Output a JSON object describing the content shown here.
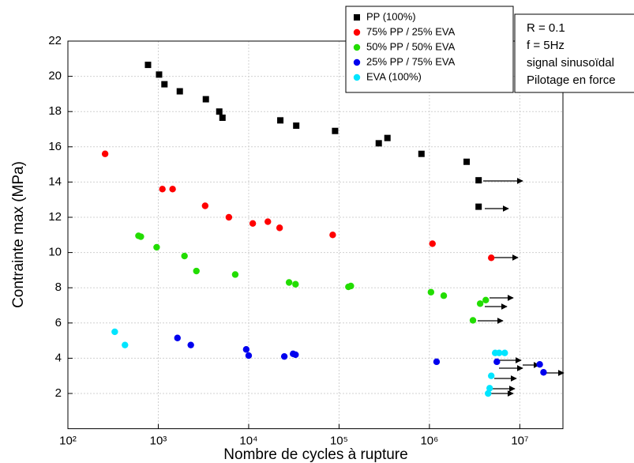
{
  "chart_data": {
    "type": "scatter",
    "xlabel": "Nombre de cycles à rupture",
    "ylabel": "Contrainte max (MPa)",
    "xscale": "log",
    "xlim": [
      100,
      30000000
    ],
    "ylim": [
      0,
      22
    ],
    "xticks": [
      {
        "value": 100,
        "label": "10²"
      },
      {
        "value": 1000,
        "label": "10³"
      },
      {
        "value": 10000,
        "label": "10⁴"
      },
      {
        "value": 100000,
        "label": "10⁵"
      },
      {
        "value": 1000000,
        "label": "10⁶"
      },
      {
        "value": 10000000,
        "label": "10⁷"
      }
    ],
    "yticks": [
      2,
      4,
      6,
      8,
      10,
      12,
      14,
      16,
      18,
      20,
      22
    ],
    "grid": true,
    "legend": "top-right",
    "annotations": [
      "R = 0.1",
      "f = 5Hz",
      "signal sinusoïdal",
      "Pilotage en force"
    ],
    "series": [
      {
        "name": "PP (100%)",
        "color": "#000000",
        "marker": "square",
        "x": [
          770,
          1020,
          1170,
          1730,
          3360,
          4730,
          5130,
          22400,
          33600,
          90400,
          275000,
          343000,
          816000,
          2580000,
          3500000,
          3500000
        ],
        "values": [
          20.65,
          20.1,
          19.55,
          19.15,
          18.7,
          18.0,
          17.65,
          17.5,
          17.2,
          16.9,
          16.2,
          16.5,
          15.6,
          15.15,
          14.1,
          12.6
        ]
      },
      {
        "name": "75% PP / 25% EVA",
        "color": "#ff0000",
        "marker": "circle",
        "x": [
          258,
          1110,
          1440,
          3300,
          6040,
          11100,
          16300,
          22000,
          85100,
          1080000,
          4830000
        ],
        "values": [
          15.6,
          13.6,
          13.6,
          12.65,
          12.0,
          11.65,
          11.75,
          11.4,
          11.0,
          10.5,
          9.7
        ]
      },
      {
        "name": "50% PP / 50% EVA",
        "color": "#22dd00",
        "marker": "circle",
        "x": [
          604,
          641,
          959,
          1950,
          2640,
          7100,
          28000,
          33000,
          127000,
          135000,
          1040000,
          1440000,
          3640000,
          4200000,
          3030000
        ],
        "values": [
          10.95,
          10.9,
          10.3,
          9.8,
          8.95,
          8.75,
          8.3,
          8.2,
          8.05,
          8.1,
          7.75,
          7.55,
          7.1,
          7.3,
          6.15
        ]
      },
      {
        "name": "25% PP / 75% EVA",
        "color": "#0000ee",
        "marker": "circle",
        "x": [
          1630,
          2290,
          9400,
          10000,
          24800,
          31000,
          33000,
          1200000,
          5570000,
          16600000,
          18300000
        ],
        "values": [
          5.15,
          4.75,
          4.5,
          4.15,
          4.1,
          4.25,
          4.2,
          3.8,
          3.8,
          3.65,
          3.2
        ]
      },
      {
        "name": "EVA (100%)",
        "color": "#00e5ff",
        "marker": "circle",
        "x": [
          330,
          428,
          5340000,
          5910000,
          6810000,
          4830000,
          4640000,
          4460000
        ],
        "values": [
          5.5,
          4.75,
          4.3,
          4.3,
          4.3,
          3.0,
          2.3,
          2.0
        ]
      }
    ]
  }
}
